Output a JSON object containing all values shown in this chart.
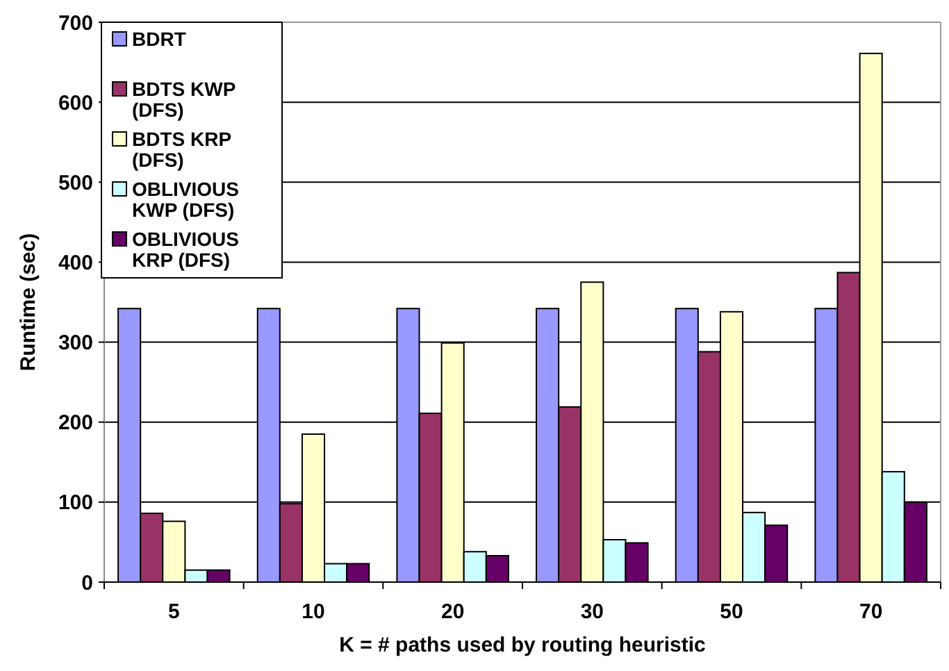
{
  "chart_data": {
    "type": "bar",
    "xlabel": "K = # paths used by routing heuristic",
    "ylabel": "Runtime (sec)",
    "categories": [
      "5",
      "10",
      "20",
      "30",
      "50",
      "70"
    ],
    "series": [
      {
        "name": "BDRT",
        "color": "#9999ff",
        "values": [
          342,
          342,
          342,
          342,
          342,
          342
        ]
      },
      {
        "name": "BDTS KWP (DFS)",
        "color": "#993366",
        "values": [
          86,
          98,
          211,
          219,
          288,
          387
        ]
      },
      {
        "name": "BDTS KRP (DFS)",
        "color": "#ffffcc",
        "values": [
          76,
          185,
          299,
          375,
          338,
          661
        ]
      },
      {
        "name": "OBLIVIOUS KWP (DFS)",
        "color": "#ccffff",
        "values": [
          15,
          23,
          38,
          53,
          87,
          138
        ]
      },
      {
        "name": "OBLIVIOUS KRP (DFS)",
        "color": "#660066",
        "values": [
          15,
          23,
          33,
          49,
          71,
          100
        ]
      }
    ],
    "ylim": [
      0,
      700
    ],
    "yticks": [
      0,
      100,
      200,
      300,
      400,
      500,
      600,
      700
    ],
    "grid": "y",
    "legend": "top left"
  }
}
